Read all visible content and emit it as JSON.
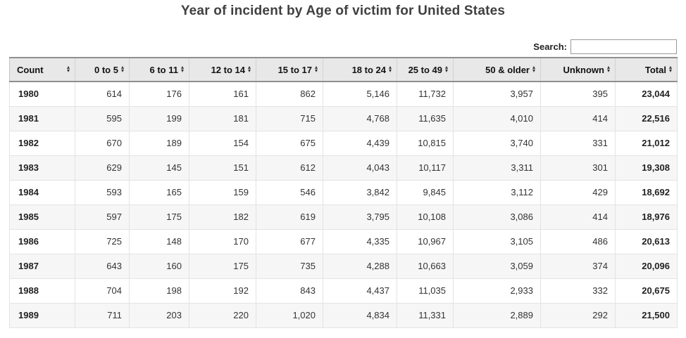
{
  "title": "Year of incident by Age of victim for United States",
  "search": {
    "label": "Search:",
    "value": "",
    "placeholder": ""
  },
  "icons": {
    "sort_asc": "▴",
    "sort_desc": "▾"
  },
  "colors": {
    "header_bg": "#e8e8e8",
    "header_border": "#8f8f8f",
    "stripe_bg": "#f6f6f6",
    "cell_border": "#e3e3e3",
    "title_text": "#404040"
  },
  "table": {
    "columns": [
      {
        "label": "Count"
      },
      {
        "label": "0 to 5"
      },
      {
        "label": "6 to 11"
      },
      {
        "label": "12 to 14"
      },
      {
        "label": "15 to 17"
      },
      {
        "label": "18 to 24"
      },
      {
        "label": "25 to 49"
      },
      {
        "label": "50 & older"
      },
      {
        "label": "Unknown"
      },
      {
        "label": "Total"
      }
    ],
    "rows": [
      {
        "year": "1980",
        "values": [
          "614",
          "176",
          "161",
          "862",
          "5,146",
          "11,732",
          "3,957",
          "395",
          "23,044"
        ]
      },
      {
        "year": "1981",
        "values": [
          "595",
          "199",
          "181",
          "715",
          "4,768",
          "11,635",
          "4,010",
          "414",
          "22,516"
        ]
      },
      {
        "year": "1982",
        "values": [
          "670",
          "189",
          "154",
          "675",
          "4,439",
          "10,815",
          "3,740",
          "331",
          "21,012"
        ]
      },
      {
        "year": "1983",
        "values": [
          "629",
          "145",
          "151",
          "612",
          "4,043",
          "10,117",
          "3,311",
          "301",
          "19,308"
        ]
      },
      {
        "year": "1984",
        "values": [
          "593",
          "165",
          "159",
          "546",
          "3,842",
          "9,845",
          "3,112",
          "429",
          "18,692"
        ]
      },
      {
        "year": "1985",
        "values": [
          "597",
          "175",
          "182",
          "619",
          "3,795",
          "10,108",
          "3,086",
          "414",
          "18,976"
        ]
      },
      {
        "year": "1986",
        "values": [
          "725",
          "148",
          "170",
          "677",
          "4,335",
          "10,967",
          "3,105",
          "486",
          "20,613"
        ]
      },
      {
        "year": "1987",
        "values": [
          "643",
          "160",
          "175",
          "735",
          "4,288",
          "10,663",
          "3,059",
          "374",
          "20,096"
        ]
      },
      {
        "year": "1988",
        "values": [
          "704",
          "198",
          "192",
          "843",
          "4,437",
          "11,035",
          "2,933",
          "332",
          "20,675"
        ]
      },
      {
        "year": "1989",
        "values": [
          "711",
          "203",
          "220",
          "1,020",
          "4,834",
          "11,331",
          "2,889",
          "292",
          "21,500"
        ]
      }
    ]
  }
}
